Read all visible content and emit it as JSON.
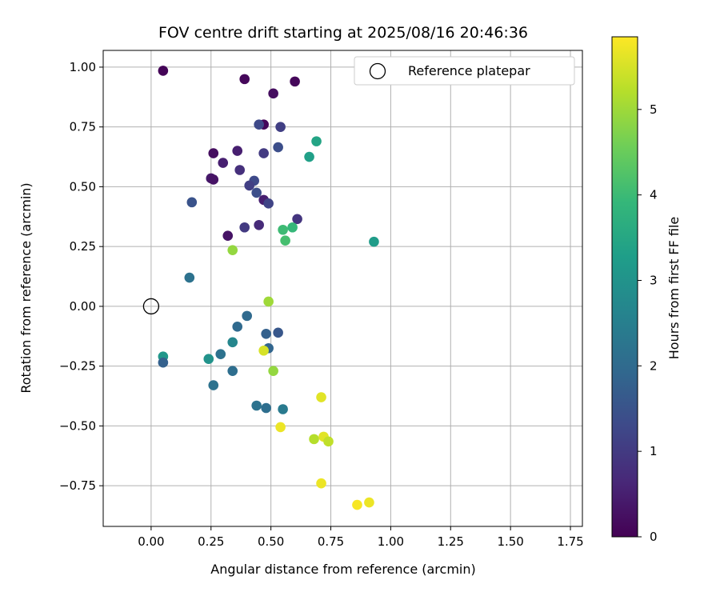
{
  "chart_data": {
    "type": "scatter",
    "title": "FOV centre drift starting at 2025/08/16 20:46:36",
    "xlabel": "Angular distance from reference (arcmin)",
    "ylabel": "Rotation from reference (arcmin)",
    "xlim": [
      -0.2,
      1.8
    ],
    "ylim": [
      -0.92,
      1.07
    ],
    "xticks": [
      0.0,
      0.25,
      0.5,
      0.75,
      1.0,
      1.25,
      1.5,
      1.75
    ],
    "xtick_labels": [
      "0.00",
      "0.25",
      "0.50",
      "0.75",
      "1.00",
      "1.25",
      "1.50",
      "1.75"
    ],
    "yticks": [
      -0.75,
      -0.5,
      -0.25,
      0.0,
      0.25,
      0.5,
      0.75,
      1.0
    ],
    "ytick_labels": [
      "−0.75",
      "−0.50",
      "−0.25",
      "0.00",
      "0.25",
      "0.50",
      "0.75",
      "1.00"
    ],
    "grid": true,
    "legend": {
      "position": "top-right",
      "entries": [
        "Reference platepar"
      ]
    },
    "reference_point": {
      "x": 0.0,
      "y": 0.0,
      "label": "Reference platepar"
    },
    "colorbar": {
      "label": "Hours from first FF file",
      "colormap": "viridis",
      "range": [
        0,
        5.85
      ],
      "ticks": [
        0,
        1,
        2,
        3,
        4,
        5
      ],
      "tick_labels": [
        "0",
        "1",
        "2",
        "3",
        "4",
        "5"
      ]
    },
    "points": [
      {
        "x": 0.05,
        "y": 0.985,
        "c": 0.05
      },
      {
        "x": 0.39,
        "y": 0.95,
        "c": 0.1
      },
      {
        "x": 0.6,
        "y": 0.94,
        "c": 0.1
      },
      {
        "x": 0.51,
        "y": 0.89,
        "c": 0.2
      },
      {
        "x": 0.47,
        "y": 0.76,
        "c": 0.1
      },
      {
        "x": 0.45,
        "y": 0.76,
        "c": 1.3
      },
      {
        "x": 0.54,
        "y": 0.75,
        "c": 1.1
      },
      {
        "x": 0.26,
        "y": 0.64,
        "c": 0.2
      },
      {
        "x": 0.36,
        "y": 0.65,
        "c": 0.5
      },
      {
        "x": 0.47,
        "y": 0.64,
        "c": 1.0
      },
      {
        "x": 0.53,
        "y": 0.665,
        "c": 1.4
      },
      {
        "x": 0.66,
        "y": 0.625,
        "c": 3.3
      },
      {
        "x": 0.69,
        "y": 0.69,
        "c": 3.4
      },
      {
        "x": 0.3,
        "y": 0.6,
        "c": 0.5
      },
      {
        "x": 0.37,
        "y": 0.57,
        "c": 0.8
      },
      {
        "x": 0.25,
        "y": 0.535,
        "c": 0.4
      },
      {
        "x": 0.26,
        "y": 0.53,
        "c": 0.3
      },
      {
        "x": 0.43,
        "y": 0.525,
        "c": 1.3
      },
      {
        "x": 0.41,
        "y": 0.505,
        "c": 1.1
      },
      {
        "x": 0.44,
        "y": 0.475,
        "c": 1.4
      },
      {
        "x": 0.17,
        "y": 0.435,
        "c": 1.5
      },
      {
        "x": 0.47,
        "y": 0.445,
        "c": 0.5
      },
      {
        "x": 0.49,
        "y": 0.43,
        "c": 1.2
      },
      {
        "x": 0.61,
        "y": 0.365,
        "c": 0.9
      },
      {
        "x": 0.39,
        "y": 0.33,
        "c": 1.0
      },
      {
        "x": 0.45,
        "y": 0.34,
        "c": 0.7
      },
      {
        "x": 0.32,
        "y": 0.295,
        "c": 0.3
      },
      {
        "x": 0.55,
        "y": 0.32,
        "c": 4.0
      },
      {
        "x": 0.59,
        "y": 0.33,
        "c": 3.9
      },
      {
        "x": 0.56,
        "y": 0.275,
        "c": 4.1
      },
      {
        "x": 0.93,
        "y": 0.27,
        "c": 3.2
      },
      {
        "x": 0.34,
        "y": 0.235,
        "c": 4.9
      },
      {
        "x": 0.16,
        "y": 0.12,
        "c": 2.2
      },
      {
        "x": 0.49,
        "y": 0.02,
        "c": 5.0
      },
      {
        "x": 0.4,
        "y": -0.04,
        "c": 2.0
      },
      {
        "x": 0.36,
        "y": -0.085,
        "c": 2.0
      },
      {
        "x": 0.48,
        "y": -0.115,
        "c": 1.8
      },
      {
        "x": 0.53,
        "y": -0.11,
        "c": 1.6
      },
      {
        "x": 0.34,
        "y": -0.15,
        "c": 2.7
      },
      {
        "x": 0.29,
        "y": -0.2,
        "c": 2.2
      },
      {
        "x": 0.49,
        "y": -0.175,
        "c": 1.9
      },
      {
        "x": 0.47,
        "y": -0.185,
        "c": 5.5
      },
      {
        "x": 0.05,
        "y": -0.21,
        "c": 3.1
      },
      {
        "x": 0.05,
        "y": -0.235,
        "c": 1.8
      },
      {
        "x": 0.24,
        "y": -0.22,
        "c": 3.0
      },
      {
        "x": 0.34,
        "y": -0.27,
        "c": 2.1
      },
      {
        "x": 0.51,
        "y": -0.27,
        "c": 4.9
      },
      {
        "x": 0.26,
        "y": -0.33,
        "c": 2.2
      },
      {
        "x": 0.71,
        "y": -0.38,
        "c": 5.6
      },
      {
        "x": 0.44,
        "y": -0.415,
        "c": 2.2
      },
      {
        "x": 0.48,
        "y": -0.425,
        "c": 2.1
      },
      {
        "x": 0.55,
        "y": -0.43,
        "c": 2.4
      },
      {
        "x": 0.54,
        "y": -0.505,
        "c": 5.7
      },
      {
        "x": 0.68,
        "y": -0.555,
        "c": 5.2
      },
      {
        "x": 0.72,
        "y": -0.545,
        "c": 5.6
      },
      {
        "x": 0.74,
        "y": -0.565,
        "c": 5.3
      },
      {
        "x": 0.71,
        "y": -0.74,
        "c": 5.7
      },
      {
        "x": 0.86,
        "y": -0.83,
        "c": 5.8
      },
      {
        "x": 0.91,
        "y": -0.82,
        "c": 5.7
      }
    ]
  }
}
